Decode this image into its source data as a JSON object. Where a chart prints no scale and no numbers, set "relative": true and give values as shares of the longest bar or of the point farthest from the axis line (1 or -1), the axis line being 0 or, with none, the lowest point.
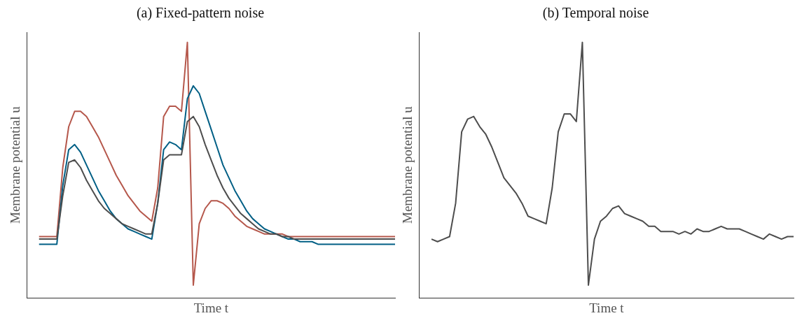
{
  "chart_data": [
    {
      "type": "line",
      "title": "(a) Fixed-pattern noise",
      "xlabel": "Time t",
      "ylabel": "Membrane potential u",
      "relative": true,
      "categories": [
        null,
        null,
        null,
        null,
        null,
        null,
        null,
        null,
        null,
        null,
        null,
        null,
        null,
        null,
        null,
        null,
        null,
        null,
        null,
        null,
        null,
        null,
        null,
        null,
        null,
        null,
        null,
        null,
        null,
        null,
        null,
        null,
        null,
        null,
        null,
        null,
        null,
        null,
        null,
        null,
        null,
        null,
        null,
        null,
        null,
        null,
        null,
        null,
        null,
        null,
        null,
        null,
        null,
        null,
        null,
        null,
        null,
        null,
        null,
        null,
        null,
        null,
        null
      ],
      "series": [
        {
          "color": "#4d4d4d",
          "values": [
            null,
            null,
            0.23,
            0.23,
            0.23,
            0.23,
            0.4,
            0.53,
            0.54,
            0.51,
            0.46,
            0.42,
            0.38,
            0.35,
            0.33,
            0.31,
            0.29,
            0.28,
            0.27,
            0.26,
            0.25,
            0.25,
            0.37,
            0.54,
            0.56,
            0.56,
            0.56,
            0.69,
            0.71,
            0.67,
            0.6,
            0.54,
            0.48,
            0.43,
            0.39,
            0.36,
            0.33,
            0.31,
            0.29,
            0.27,
            0.26,
            0.25,
            0.25,
            0.24,
            0.24,
            0.23,
            0.23,
            0.23,
            0.23,
            0.23,
            0.23,
            0.23,
            0.23,
            0.23,
            0.23,
            0.23,
            0.23,
            0.23,
            0.23,
            0.23,
            0.23,
            0.23,
            0.23
          ]
        },
        {
          "color": "#005f85",
          "values": [
            null,
            null,
            0.21,
            0.21,
            0.21,
            0.21,
            0.44,
            0.58,
            0.6,
            0.57,
            0.52,
            0.47,
            0.42,
            0.38,
            0.34,
            0.31,
            0.29,
            0.27,
            0.26,
            0.25,
            0.24,
            0.23,
            0.37,
            0.58,
            0.61,
            0.6,
            0.58,
            0.78,
            0.83,
            0.8,
            0.73,
            0.66,
            0.59,
            0.52,
            0.47,
            0.42,
            0.38,
            0.34,
            0.31,
            0.29,
            0.27,
            0.26,
            0.25,
            0.24,
            0.23,
            0.23,
            0.22,
            0.22,
            0.22,
            0.21,
            0.21,
            0.21,
            0.21,
            0.21,
            0.21,
            0.21,
            0.21,
            0.21,
            0.21,
            0.21,
            0.21,
            0.21,
            0.21
          ]
        },
        {
          "color": "#b5574b",
          "values": [
            null,
            null,
            0.24,
            0.24,
            0.24,
            0.24,
            0.51,
            0.67,
            0.73,
            0.73,
            0.71,
            0.67,
            0.63,
            0.58,
            0.53,
            0.48,
            0.44,
            0.4,
            0.37,
            0.34,
            0.32,
            0.3,
            0.43,
            0.71,
            0.75,
            0.75,
            0.73,
            1.0,
            0.05,
            0.29,
            0.35,
            0.38,
            0.38,
            0.37,
            0.35,
            0.32,
            0.3,
            0.28,
            0.27,
            0.26,
            0.25,
            0.25,
            0.25,
            0.25,
            0.24,
            0.24,
            0.24,
            0.24,
            0.24,
            0.24,
            0.24,
            0.24,
            0.24,
            0.24,
            0.24,
            0.24,
            0.24,
            0.24,
            0.24,
            0.24,
            0.24,
            0.24,
            0.24
          ]
        }
      ]
    },
    {
      "type": "line",
      "title": "(b) Temporal noise",
      "xlabel": "Time t",
      "ylabel": "Membrane potential u",
      "relative": true,
      "categories": [
        null,
        null,
        null,
        null,
        null,
        null,
        null,
        null,
        null,
        null,
        null,
        null,
        null,
        null,
        null,
        null,
        null,
        null,
        null,
        null,
        null,
        null,
        null,
        null,
        null,
        null,
        null,
        null,
        null,
        null,
        null,
        null,
        null,
        null,
        null,
        null,
        null,
        null,
        null,
        null,
        null,
        null,
        null,
        null,
        null,
        null,
        null,
        null,
        null,
        null,
        null,
        null,
        null,
        null,
        null,
        null,
        null,
        null,
        null,
        null,
        null,
        null,
        null
      ],
      "series": [
        {
          "color": "#4d4d4d",
          "values": [
            null,
            null,
            0.23,
            0.22,
            0.23,
            0.24,
            0.37,
            0.65,
            0.7,
            0.71,
            0.67,
            0.64,
            0.59,
            0.53,
            0.47,
            0.44,
            0.41,
            0.37,
            0.32,
            0.31,
            0.3,
            0.29,
            0.43,
            0.65,
            0.72,
            0.72,
            0.69,
            1.0,
            0.05,
            0.23,
            0.3,
            0.32,
            0.35,
            0.36,
            0.33,
            0.32,
            0.31,
            0.3,
            0.28,
            0.28,
            0.26,
            0.26,
            0.26,
            0.25,
            0.26,
            0.25,
            0.27,
            0.26,
            0.26,
            0.27,
            0.28,
            0.27,
            0.27,
            0.27,
            0.26,
            0.25,
            0.24,
            0.23,
            0.25,
            0.24,
            0.23,
            0.24,
            0.24
          ]
        }
      ]
    }
  ]
}
